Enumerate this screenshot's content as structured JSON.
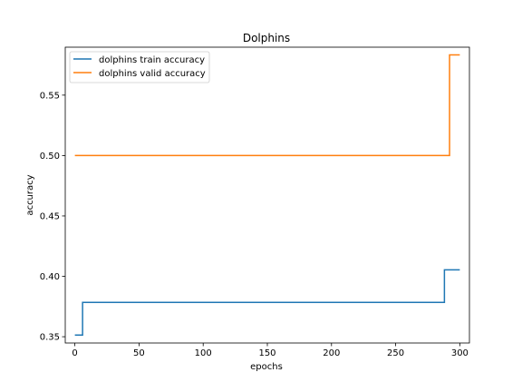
{
  "chart_data": {
    "type": "line",
    "title": "Dolphins",
    "xlabel": "epochs",
    "ylabel": "accuracy",
    "xlim": [
      -7.5,
      307.5
    ],
    "ylim": [
      0.3448,
      0.5897
    ],
    "xticks": [
      0,
      50,
      100,
      150,
      200,
      250,
      300
    ],
    "yticks": [
      0.35,
      0.4,
      0.45,
      0.5,
      0.55
    ],
    "ytick_labels": [
      "0.35",
      "0.40",
      "0.45",
      "0.50",
      "0.55"
    ],
    "grid": false,
    "legend_position": "top-left",
    "series": [
      {
        "name": "dolphins train accuracy",
        "color": "#1f77b4",
        "step_points": [
          [
            0,
            0.3514
          ],
          [
            6,
            0.3514
          ],
          [
            6,
            0.3784
          ],
          [
            288,
            0.3784
          ],
          [
            288,
            0.4054
          ],
          [
            300,
            0.4054
          ]
        ]
      },
      {
        "name": "dolphins valid accuracy",
        "color": "#ff7f0e",
        "step_points": [
          [
            0,
            0.5
          ],
          [
            292,
            0.5
          ],
          [
            292,
            0.5833
          ],
          [
            300,
            0.5833
          ]
        ]
      }
    ]
  }
}
